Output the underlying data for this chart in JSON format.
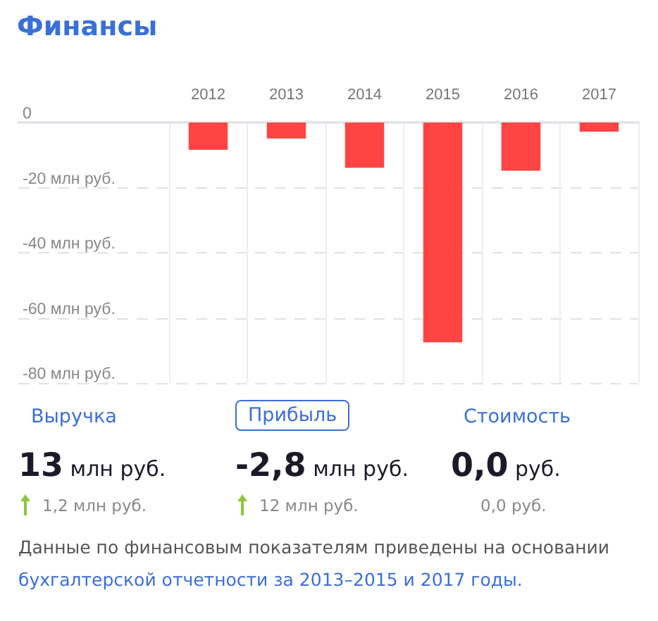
{
  "chart_data": {
    "type": "bar",
    "title": "Финансы",
    "categories": [
      "2012",
      "2013",
      "2014",
      "2015",
      "2016",
      "2017"
    ],
    "values": [
      -8.4,
      -4.9,
      -13.9,
      -67.5,
      -14.8,
      -2.8
    ],
    "color": "#ff4444",
    "ylim": [
      -80,
      0
    ],
    "yticks": [
      {
        "value": -80,
        "label": "-80 млн руб."
      },
      {
        "value": -60,
        "label": "-60 млн руб."
      },
      {
        "value": -40,
        "label": "-40 млн руб."
      },
      {
        "value": -20,
        "label": "-20 млн руб."
      },
      0
    ],
    "grid": true,
    "annotations": [
      "Выручка",
      "Прибыль",
      "Стоимость",
      "13 млн руб.",
      "-2,8 млн руб.",
      "0,0 руб.",
      "1,2 млн руб.",
      "12 млн руб.",
      "0,0 руб.",
      "Данные по финансовым показателям приведены на основании",
      "бухгалтерской отчетности за 2013–2015 и 2017 годы."
    ]
  }
}
